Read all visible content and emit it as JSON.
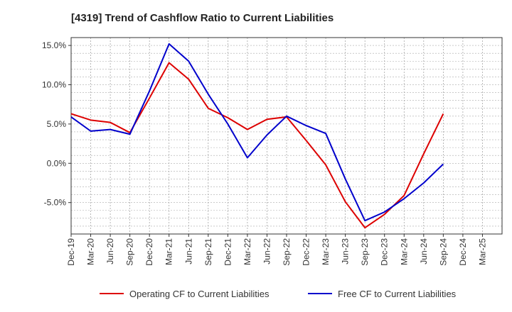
{
  "chart_data": {
    "type": "line",
    "title": "[4319]  Trend of Cashflow Ratio to Current Liabilities",
    "xlabel": "",
    "ylabel": "",
    "categories": [
      "Dec-19",
      "Mar-20",
      "Jun-20",
      "Sep-20",
      "Dec-20",
      "Mar-21",
      "Jun-21",
      "Sep-21",
      "Dec-21",
      "Mar-22",
      "Jun-22",
      "Sep-22",
      "Dec-22",
      "Mar-23",
      "Jun-23",
      "Sep-23",
      "Dec-23",
      "Mar-24",
      "Jun-24",
      "Sep-24",
      "Dec-24",
      "Mar-25"
    ],
    "ylim": [
      -9,
      16
    ],
    "yticks": [
      15,
      10,
      5,
      0,
      -5
    ],
    "ytick_labels": [
      "15.0%",
      "10.0%",
      "5.0%",
      "0.0%",
      "-5.0%"
    ],
    "grid": true,
    "legend_position": "bottom",
    "series": [
      {
        "name": "Operating CF to Current Liabilities",
        "color": "#dd0000",
        "values": [
          6.3,
          5.5,
          5.2,
          3.9,
          8.3,
          12.8,
          10.7,
          7.0,
          5.8,
          4.3,
          5.6,
          5.9,
          2.9,
          -0.2,
          -4.9,
          -8.2,
          -6.5,
          -4.1,
          1.2,
          6.3,
          null,
          null
        ]
      },
      {
        "name": "Free CF to Current Liabilities",
        "color": "#0000cc",
        "values": [
          5.9,
          4.1,
          4.3,
          3.7,
          9.2,
          15.2,
          13.0,
          8.8,
          5.0,
          0.7,
          3.6,
          6.0,
          4.8,
          3.8,
          -2.0,
          -7.3,
          -6.2,
          -4.5,
          -2.5,
          -0.1,
          null,
          null
        ]
      }
    ]
  }
}
